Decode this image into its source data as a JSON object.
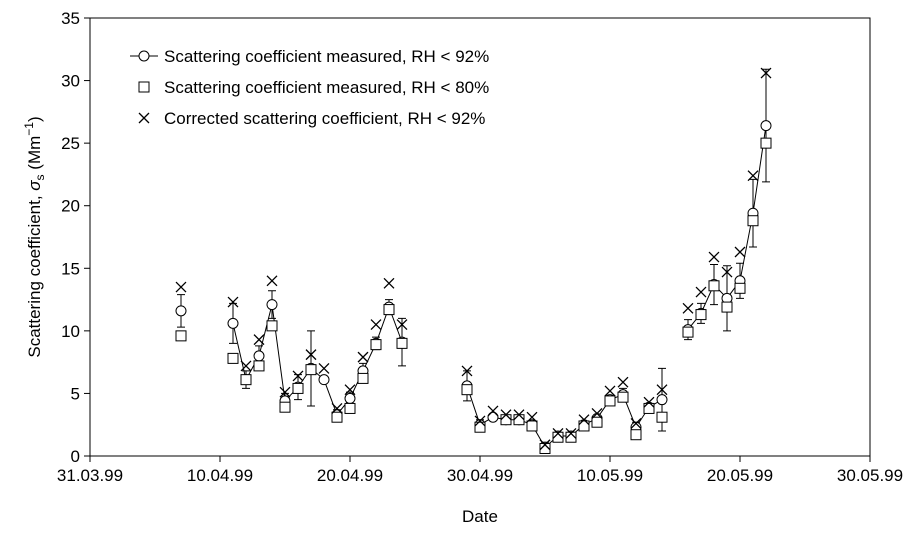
{
  "chart_data": {
    "type": "scatter",
    "xlabel": "Date",
    "ylabel": {
      "text": "Scattering coefficient, ",
      "symbol": "σ",
      "sub": "s",
      "unit": " (Mm",
      "sup": "−1",
      "close": ")"
    },
    "x": [
      "07.04.99",
      "09.04.99",
      "11.04.99",
      "12.04.99",
      "13.04.99",
      "14.04.99",
      "15.04.99",
      "16.04.99",
      "17.04.99",
      "18.04.99",
      "19.04.99",
      "20.04.99",
      "21.04.99",
      "22.04.99",
      "23.04.99",
      "24.04.99",
      "26.04.99",
      "29.04.99",
      "30.04.99",
      "01.05.99",
      "02.05.99",
      "03.05.99",
      "04.05.99",
      "05.05.99",
      "06.05.99",
      "07.05.99",
      "08.05.99",
      "09.05.99",
      "10.05.99",
      "11.05.99",
      "12.05.99",
      "13.05.99",
      "14.05.99",
      "15.05.99",
      "16.05.99",
      "17.05.99",
      "18.05.99",
      "19.05.99",
      "20.05.99",
      "21.05.99",
      "22.05.99"
    ],
    "series": [
      {
        "name": "Scattering coefficient measured, RH < 92%",
        "color": "#000000",
        "marker": "circle",
        "line": true,
        "values": [
          11.6,
          null,
          10.6,
          6.1,
          8.0,
          12.1,
          4.4,
          5.5,
          7.0,
          6.1,
          3.3,
          4.6,
          6.8,
          9.0,
          11.9,
          9.1,
          null,
          5.6,
          2.5,
          3.1,
          2.9,
          2.9,
          2.5,
          0.7,
          1.6,
          1.6,
          2.5,
          3.0,
          4.5,
          4.9,
          2.3,
          3.9,
          4.5,
          null,
          10.1,
          11.4,
          13.7,
          12.6,
          14.0,
          19.4,
          26.4
        ],
        "errors": [
          1.3,
          null,
          1.6,
          0.7,
          0.8,
          1.1,
          0.6,
          1.0,
          3.0,
          null,
          0.4,
          0.5,
          0.6,
          0.5,
          0.6,
          1.9,
          null,
          1.2,
          0.4,
          null,
          null,
          null,
          null,
          0.4,
          null,
          null,
          null,
          null,
          0.3,
          0.5,
          0.4,
          null,
          2.5,
          null,
          0.8,
          0.8,
          1.6,
          2.6,
          1.4,
          2.7,
          4.5
        ]
      },
      {
        "name": "Scattering coefficient measured, RH < 80%",
        "color": "#000000",
        "marker": "square",
        "line": false,
        "values": [
          9.6,
          null,
          7.8,
          6.1,
          7.2,
          10.4,
          3.9,
          5.4,
          6.9,
          null,
          3.1,
          3.8,
          6.2,
          8.9,
          11.7,
          9.0,
          null,
          5.3,
          2.3,
          null,
          2.9,
          2.9,
          2.4,
          0.6,
          1.5,
          1.5,
          2.4,
          2.7,
          4.4,
          4.7,
          1.7,
          3.8,
          3.1,
          null,
          9.9,
          11.3,
          13.6,
          11.9,
          13.4,
          18.8,
          25.0
        ]
      },
      {
        "name": "Corrected scattering coefficient, RH < 92%",
        "color": "#000000",
        "marker": "x",
        "line": false,
        "values": [
          13.5,
          null,
          12.3,
          7.2,
          9.3,
          14.0,
          5.1,
          6.4,
          8.1,
          7.0,
          3.8,
          5.3,
          7.9,
          10.5,
          13.8,
          10.5,
          null,
          6.8,
          2.8,
          3.6,
          3.3,
          3.3,
          3.1,
          0.9,
          1.8,
          1.8,
          2.9,
          3.4,
          5.2,
          5.9,
          2.6,
          4.3,
          5.3,
          null,
          11.8,
          13.1,
          15.9,
          14.7,
          16.3,
          22.4,
          30.6
        ]
      }
    ],
    "xlim": [
      "31.03.99",
      "30.05.99"
    ],
    "xticks": [
      "31.03.99",
      "10.04.99",
      "20.04.99",
      "30.04.99",
      "10.05.99",
      "20.05.99",
      "30.05.99"
    ],
    "ylim": [
      0,
      35
    ],
    "yticks": [
      0,
      5,
      10,
      15,
      20,
      25,
      30,
      35
    ],
    "grid": false,
    "legend": "upper-left"
  }
}
